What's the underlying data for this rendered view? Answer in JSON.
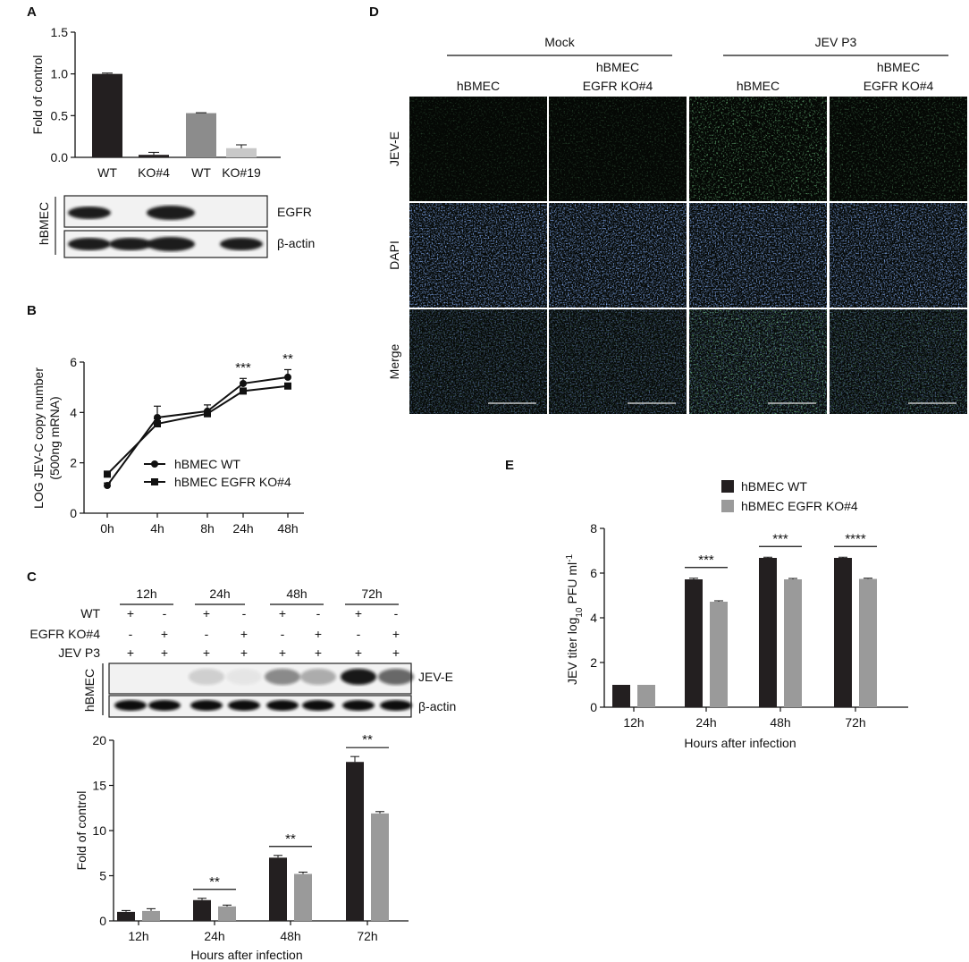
{
  "colors": {
    "dark": "#231f20",
    "mid": "#8c8c8c",
    "light": "#c8c8c8",
    "green": "#2a8a3a",
    "blue": "#2a4aa8"
  },
  "panels": {
    "A": "A",
    "B": "B",
    "C": "C",
    "D": "D",
    "E": "E"
  },
  "panelA": {
    "blot_side": "hBMEC",
    "blot_rows": [
      "EGFR",
      "β-actin"
    ]
  },
  "panelC": {
    "times": [
      "12h",
      "24h",
      "48h",
      "72h"
    ],
    "row_labels": [
      "WT",
      "EGFR KO#4",
      "JEV P3"
    ],
    "wt_signs": [
      "+",
      "-",
      "+",
      "-",
      "+",
      "-",
      "+",
      "-"
    ],
    "ko_signs": [
      "-",
      "+",
      "-",
      "+",
      "-",
      "+",
      "-",
      "+"
    ],
    "jev_signs": [
      "+",
      "+",
      "+",
      "+",
      "+",
      "+",
      "+",
      "+"
    ],
    "blot_side": "hBMEC",
    "blot_rows": [
      "JEV-E",
      "β-actin"
    ]
  },
  "panelD": {
    "groups": [
      "Mock",
      "JEV P3"
    ],
    "columns": [
      "hBMEC",
      "hBMEC\nEGFR KO#4",
      "hBMEC",
      "hBMEC\nEGFR KO#4"
    ],
    "col_line1": [
      "hBMEC",
      "hBMEC",
      "hBMEC",
      "hBMEC"
    ],
    "col_line2": [
      "",
      "EGFR KO#4",
      "",
      "EGFR KO#4"
    ],
    "rows": [
      "JEV-E",
      "DAPI",
      "Merge"
    ]
  },
  "chart_data": [
    {
      "id": "A",
      "type": "bar",
      "categories": [
        "WT",
        "KO#4",
        "WT",
        "KO#19"
      ],
      "values": [
        1.0,
        0.03,
        0.53,
        0.11
      ],
      "errors": [
        0.01,
        0.03,
        0.005,
        0.04
      ],
      "colors": [
        "#231f20",
        "#231f20",
        "#8c8c8c",
        "#c8c8c8"
      ],
      "ylabel": "Fold of  control",
      "ylim": [
        0,
        1.5
      ],
      "yticks": [
        "0.0",
        "0.5",
        "1.0",
        "1.5"
      ]
    },
    {
      "id": "B",
      "type": "line",
      "x": [
        "0h",
        "4h",
        "8h",
        "24h",
        "48h"
      ],
      "series": [
        {
          "name": "hBMEC WT",
          "marker": "circle",
          "values": [
            1.1,
            3.8,
            4.05,
            5.15,
            5.4
          ],
          "errors": [
            0.1,
            0.45,
            0.25,
            0.2,
            0.3
          ]
        },
        {
          "name": "hBMEC EGFR KO#4",
          "marker": "square",
          "values": [
            1.55,
            3.55,
            3.95,
            4.85,
            5.05
          ],
          "errors": [
            0.1,
            0.2,
            0.1,
            0.1,
            0.1
          ]
        }
      ],
      "ylabel": "LOG JEV-C copy number\n(500ng mRNA)",
      "ylabel1": "LOG JEV-C copy number",
      "ylabel2": "(500ng mRNA)",
      "ylim": [
        0,
        6
      ],
      "yticks": [
        "0",
        "2",
        "4",
        "6"
      ],
      "annotations": [
        {
          "x": "24h",
          "text": "***"
        },
        {
          "x": "48h",
          "text": "**"
        }
      ]
    },
    {
      "id": "C",
      "type": "bar",
      "categories": [
        "12h",
        "24h",
        "48h",
        "72h"
      ],
      "series": [
        {
          "name": "WT",
          "color": "#231f20",
          "values": [
            1.0,
            2.3,
            7.0,
            17.6
          ],
          "errors": [
            0.15,
            0.2,
            0.25,
            0.6
          ]
        },
        {
          "name": "EGFR KO#4",
          "color": "#9a9a9a",
          "values": [
            1.1,
            1.6,
            5.2,
            11.9
          ],
          "errors": [
            0.25,
            0.15,
            0.2,
            0.2
          ]
        }
      ],
      "ylabel": "Fold of  control",
      "xlabel": "Hours after infection",
      "ylim": [
        0,
        20
      ],
      "yticks": [
        "0",
        "5",
        "10",
        "15",
        "20"
      ],
      "annotations": [
        {
          "x": "24h",
          "text": "**"
        },
        {
          "x": "48h",
          "text": "**"
        },
        {
          "x": "72h",
          "text": "**"
        }
      ]
    },
    {
      "id": "E",
      "type": "bar",
      "categories": [
        "12h",
        "24h",
        "48h",
        "72h"
      ],
      "series": [
        {
          "name": "hBMEC WT",
          "color": "#231f20",
          "values": [
            1.0,
            5.72,
            6.68,
            6.68
          ],
          "errors": [
            0,
            0.05,
            0.03,
            0.03
          ]
        },
        {
          "name": "hBMEC EGFR KO#4",
          "color": "#9a9a9a",
          "values": [
            1.0,
            4.72,
            5.72,
            5.74
          ],
          "errors": [
            0,
            0.04,
            0.04,
            0.03
          ]
        }
      ],
      "ylabel": "JEV titer log10 PFU ml-1",
      "xlabel": "Hours after infection",
      "ylim": [
        0,
        8
      ],
      "yticks": [
        "0",
        "2",
        "4",
        "6",
        "8"
      ],
      "annotations": [
        {
          "x": "24h",
          "text": "***"
        },
        {
          "x": "48h",
          "text": "***"
        },
        {
          "x": "72h",
          "text": "****"
        }
      ]
    }
  ]
}
